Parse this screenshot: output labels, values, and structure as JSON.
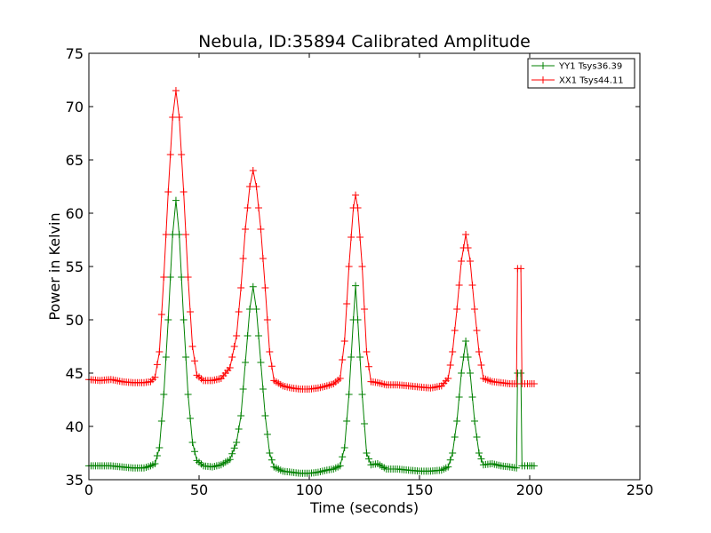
{
  "chart_data": {
    "type": "line",
    "title": "Nebula, ID:35894 Calibrated Amplitude",
    "xlabel": "Time (seconds)",
    "ylabel": "Power in Kelvin",
    "xlim": [
      0,
      250
    ],
    "ylim": [
      35,
      75
    ],
    "xticks": [
      0,
      50,
      100,
      150,
      200,
      250
    ],
    "yticks": [
      35,
      40,
      45,
      50,
      55,
      60,
      65,
      70,
      75
    ],
    "grid": false,
    "legend_position": "top-right",
    "marker": "+",
    "series": [
      {
        "name": "YY1 Tsys36.39",
        "color": "#008000",
        "points": [
          [
            0,
            36.3
          ],
          [
            5,
            36.3
          ],
          [
            10,
            36.3
          ],
          [
            15,
            36.2
          ],
          [
            20,
            36.1
          ],
          [
            25,
            36.1
          ],
          [
            28,
            36.3
          ],
          [
            30,
            36.5
          ],
          [
            32,
            38
          ],
          [
            34,
            43
          ],
          [
            36,
            50
          ],
          [
            38,
            58
          ],
          [
            39.5,
            61.2
          ],
          [
            41,
            58
          ],
          [
            43,
            50
          ],
          [
            45,
            43
          ],
          [
            47,
            38.5
          ],
          [
            49,
            36.8
          ],
          [
            52,
            36.3
          ],
          [
            56,
            36.2
          ],
          [
            60,
            36.4
          ],
          [
            64,
            36.9
          ],
          [
            67,
            38.5
          ],
          [
            69,
            41
          ],
          [
            71,
            46
          ],
          [
            73,
            51
          ],
          [
            74.5,
            53.1
          ],
          [
            76,
            51
          ],
          [
            78,
            46
          ],
          [
            80,
            41
          ],
          [
            82,
            37.5
          ],
          [
            84,
            36.2
          ],
          [
            88,
            35.8
          ],
          [
            92,
            35.7
          ],
          [
            96,
            35.6
          ],
          [
            100,
            35.6
          ],
          [
            104,
            35.7
          ],
          [
            108,
            35.9
          ],
          [
            111,
            36
          ],
          [
            114,
            36.3
          ],
          [
            116,
            38
          ],
          [
            118,
            43
          ],
          [
            120,
            50
          ],
          [
            121,
            53.2
          ],
          [
            122,
            50
          ],
          [
            124,
            43
          ],
          [
            126,
            37.5
          ],
          [
            128,
            36.4
          ],
          [
            131,
            36.5
          ],
          [
            135,
            36
          ],
          [
            140,
            36
          ],
          [
            145,
            35.9
          ],
          [
            150,
            35.8
          ],
          [
            155,
            35.8
          ],
          [
            160,
            35.9
          ],
          [
            163,
            36.2
          ],
          [
            165,
            37.5
          ],
          [
            167,
            40.5
          ],
          [
            169,
            45
          ],
          [
            171,
            48
          ],
          [
            173,
            45
          ],
          [
            175,
            40.5
          ],
          [
            177,
            37.5
          ],
          [
            179,
            36.4
          ],
          [
            183,
            36.5
          ],
          [
            187,
            36.3
          ],
          [
            191,
            36.2
          ],
          [
            194,
            36.1
          ],
          [
            194.5,
            45
          ],
          [
            196,
            45
          ],
          [
            196.5,
            36.3
          ],
          [
            199,
            36.3
          ],
          [
            202,
            36.3
          ]
        ]
      },
      {
        "name": "XX1 Tsys44.11",
        "color": "#ff0000",
        "points": [
          [
            0,
            44.4
          ],
          [
            5,
            44.3
          ],
          [
            10,
            44.4
          ],
          [
            15,
            44.2
          ],
          [
            20,
            44.1
          ],
          [
            25,
            44.1
          ],
          [
            28,
            44.2
          ],
          [
            30,
            44.6
          ],
          [
            32,
            47
          ],
          [
            34,
            54
          ],
          [
            36,
            62
          ],
          [
            38,
            69
          ],
          [
            39.5,
            71.5
          ],
          [
            41,
            69
          ],
          [
            43,
            62
          ],
          [
            45,
            54
          ],
          [
            47,
            47.5
          ],
          [
            49,
            44.8
          ],
          [
            52,
            44.3
          ],
          [
            56,
            44.3
          ],
          [
            60,
            44.5
          ],
          [
            64,
            45.5
          ],
          [
            67,
            48.5
          ],
          [
            69,
            53
          ],
          [
            71,
            58.5
          ],
          [
            73,
            62.5
          ],
          [
            74.5,
            64
          ],
          [
            76,
            62.5
          ],
          [
            78,
            58.5
          ],
          [
            80,
            53
          ],
          [
            82,
            47
          ],
          [
            84,
            44.3
          ],
          [
            88,
            43.8
          ],
          [
            92,
            43.6
          ],
          [
            96,
            43.5
          ],
          [
            100,
            43.5
          ],
          [
            104,
            43.6
          ],
          [
            108,
            43.8
          ],
          [
            111,
            44
          ],
          [
            114,
            44.5
          ],
          [
            116,
            48
          ],
          [
            118,
            55
          ],
          [
            120,
            60.5
          ],
          [
            121,
            61.7
          ],
          [
            122,
            60.5
          ],
          [
            124,
            55
          ],
          [
            126,
            47
          ],
          [
            128,
            44.2
          ],
          [
            131,
            44.1
          ],
          [
            135,
            43.9
          ],
          [
            140,
            43.9
          ],
          [
            145,
            43.8
          ],
          [
            150,
            43.7
          ],
          [
            155,
            43.6
          ],
          [
            160,
            43.8
          ],
          [
            163,
            44.5
          ],
          [
            165,
            47
          ],
          [
            167,
            51
          ],
          [
            169,
            55.5
          ],
          [
            171,
            58
          ],
          [
            173,
            55.5
          ],
          [
            175,
            51
          ],
          [
            177,
            47
          ],
          [
            179,
            44.5
          ],
          [
            183,
            44.2
          ],
          [
            187,
            44.1
          ],
          [
            191,
            44
          ],
          [
            194,
            44
          ],
          [
            194.5,
            54.8
          ],
          [
            196,
            54.8
          ],
          [
            196.5,
            44
          ],
          [
            199,
            44
          ],
          [
            202,
            44
          ]
        ]
      }
    ]
  }
}
